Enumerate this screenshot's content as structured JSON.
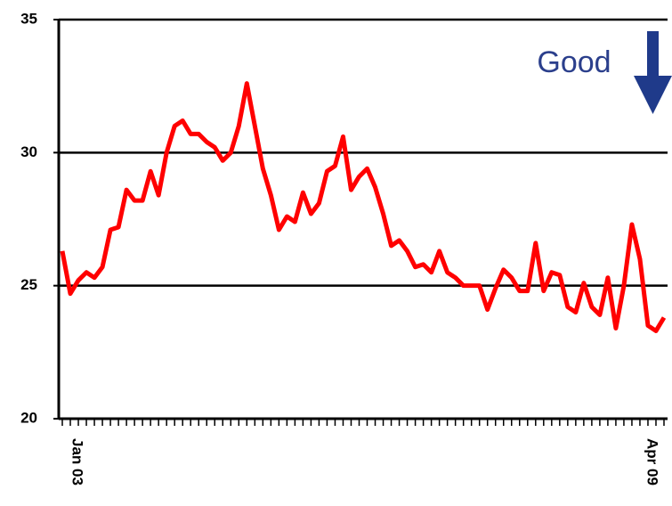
{
  "chart_data": {
    "type": "line",
    "annotation": "Good",
    "categories": [
      "Jan 03",
      null,
      null,
      null,
      null,
      null,
      null,
      null,
      null,
      null,
      null,
      null,
      null,
      null,
      null,
      null,
      null,
      null,
      null,
      null,
      null,
      null,
      null,
      null,
      null,
      null,
      null,
      null,
      null,
      null,
      null,
      null,
      null,
      null,
      null,
      null,
      null,
      null,
      null,
      null,
      null,
      null,
      null,
      null,
      null,
      null,
      null,
      null,
      null,
      null,
      null,
      null,
      null,
      null,
      null,
      null,
      null,
      null,
      null,
      null,
      null,
      null,
      null,
      null,
      null,
      null,
      null,
      null,
      null,
      null,
      null,
      null,
      null,
      null,
      null,
      "Apr 09"
    ],
    "series": [
      {
        "name": null,
        "color": "#ff0000",
        "values": [
          26.3,
          24.7,
          25.2,
          25.5,
          25.3,
          25.7,
          27.1,
          27.2,
          28.6,
          28.2,
          28.2,
          29.3,
          28.4,
          30.0,
          31.0,
          31.2,
          30.7,
          30.7,
          30.4,
          30.2,
          29.7,
          30.0,
          31.0,
          32.6,
          31.0,
          29.4,
          28.4,
          27.1,
          27.6,
          27.4,
          28.5,
          27.7,
          28.1,
          29.3,
          29.5,
          30.6,
          28.6,
          29.1,
          29.4,
          28.7,
          27.7,
          26.5,
          26.7,
          26.3,
          25.7,
          25.8,
          25.5,
          26.3,
          25.5,
          25.3,
          25.0,
          25.0,
          25.0,
          24.1,
          24.9,
          25.6,
          25.3,
          24.8,
          24.8,
          26.6,
          24.8,
          25.5,
          25.4,
          24.2,
          24.0,
          25.1,
          24.2,
          23.9,
          25.3,
          23.4,
          25.0,
          27.3,
          26.0,
          23.5,
          23.3,
          23.8
        ]
      }
    ],
    "ylim": [
      20,
      35
    ],
    "yticks": [
      20,
      25,
      30,
      35
    ],
    "grid": true
  }
}
